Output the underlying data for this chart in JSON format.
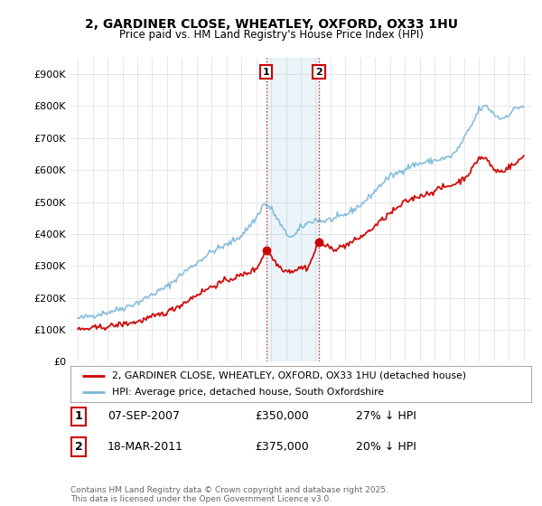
{
  "title_line1": "2, GARDINER CLOSE, WHEATLEY, OXFORD, OX33 1HU",
  "title_line2": "Price paid vs. HM Land Registry's House Price Index (HPI)",
  "background_color": "#ffffff",
  "plot_bg_color": "#ffffff",
  "grid_color": "#dddddd",
  "hpi_color": "#7ab8d9",
  "price_color": "#cc0000",
  "sale1_date_x": 2007.68,
  "sale1_price": 350000,
  "sale2_date_x": 2011.21,
  "sale2_price": 375000,
  "sale1_label": "07-SEP-2007",
  "sale2_label": "18-MAR-2011",
  "sale1_pct": "27% ↓ HPI",
  "sale2_pct": "20% ↓ HPI",
  "legend_label1": "2, GARDINER CLOSE, WHEATLEY, OXFORD, OX33 1HU (detached house)",
  "legend_label2": "HPI: Average price, detached house, South Oxfordshire",
  "footnote": "Contains HM Land Registry data © Crown copyright and database right 2025.\nThis data is licensed under the Open Government Licence v3.0.",
  "xmin": 1994.5,
  "xmax": 2025.5,
  "ymin": 0,
  "ymax": 950000,
  "hpi_base": [
    [
      1995.0,
      135000
    ],
    [
      1996.0,
      145000
    ],
    [
      1997.0,
      155000
    ],
    [
      1998.0,
      168000
    ],
    [
      1999.0,
      185000
    ],
    [
      2000.0,
      210000
    ],
    [
      2001.0,
      235000
    ],
    [
      2002.0,
      275000
    ],
    [
      2003.0,
      310000
    ],
    [
      2004.0,
      345000
    ],
    [
      2005.0,
      365000
    ],
    [
      2006.0,
      395000
    ],
    [
      2007.0,
      450000
    ],
    [
      2007.5,
      495000
    ],
    [
      2008.0,
      480000
    ],
    [
      2008.5,
      440000
    ],
    [
      2009.0,
      400000
    ],
    [
      2009.5,
      390000
    ],
    [
      2010.0,
      420000
    ],
    [
      2010.5,
      435000
    ],
    [
      2011.0,
      445000
    ],
    [
      2011.5,
      440000
    ],
    [
      2012.0,
      445000
    ],
    [
      2012.5,
      450000
    ],
    [
      2013.0,
      460000
    ],
    [
      2013.5,
      475000
    ],
    [
      2014.0,
      490000
    ],
    [
      2014.5,
      510000
    ],
    [
      2015.0,
      535000
    ],
    [
      2015.5,
      560000
    ],
    [
      2016.0,
      580000
    ],
    [
      2016.5,
      590000
    ],
    [
      2017.0,
      605000
    ],
    [
      2017.5,
      615000
    ],
    [
      2018.0,
      620000
    ],
    [
      2018.5,
      625000
    ],
    [
      2019.0,
      630000
    ],
    [
      2019.5,
      635000
    ],
    [
      2020.0,
      640000
    ],
    [
      2020.5,
      660000
    ],
    [
      2021.0,
      700000
    ],
    [
      2021.5,
      740000
    ],
    [
      2022.0,
      790000
    ],
    [
      2022.5,
      800000
    ],
    [
      2023.0,
      775000
    ],
    [
      2023.5,
      760000
    ],
    [
      2024.0,
      775000
    ],
    [
      2024.5,
      795000
    ],
    [
      2025.0,
      800000
    ]
  ],
  "price_base": [
    [
      1995.0,
      100000
    ],
    [
      1996.0,
      105000
    ],
    [
      1997.0,
      110000
    ],
    [
      1998.0,
      118000
    ],
    [
      1999.0,
      125000
    ],
    [
      2000.0,
      140000
    ],
    [
      2001.0,
      155000
    ],
    [
      2002.0,
      180000
    ],
    [
      2003.0,
      210000
    ],
    [
      2004.0,
      235000
    ],
    [
      2005.0,
      255000
    ],
    [
      2006.0,
      270000
    ],
    [
      2007.0,
      290000
    ],
    [
      2007.68,
      350000
    ],
    [
      2008.0,
      330000
    ],
    [
      2008.5,
      300000
    ],
    [
      2009.0,
      285000
    ],
    [
      2009.5,
      285000
    ],
    [
      2010.0,
      295000
    ],
    [
      2010.5,
      295000
    ],
    [
      2011.21,
      375000
    ],
    [
      2011.5,
      365000
    ],
    [
      2012.0,
      355000
    ],
    [
      2012.5,
      355000
    ],
    [
      2013.0,
      365000
    ],
    [
      2013.5,
      375000
    ],
    [
      2014.0,
      390000
    ],
    [
      2014.5,
      405000
    ],
    [
      2015.0,
      425000
    ],
    [
      2015.5,
      445000
    ],
    [
      2016.0,
      465000
    ],
    [
      2016.5,
      480000
    ],
    [
      2017.0,
      500000
    ],
    [
      2017.5,
      510000
    ],
    [
      2018.0,
      520000
    ],
    [
      2018.5,
      525000
    ],
    [
      2019.0,
      535000
    ],
    [
      2019.5,
      545000
    ],
    [
      2020.0,
      550000
    ],
    [
      2020.5,
      560000
    ],
    [
      2021.0,
      575000
    ],
    [
      2021.5,
      600000
    ],
    [
      2022.0,
      640000
    ],
    [
      2022.5,
      635000
    ],
    [
      2023.0,
      600000
    ],
    [
      2023.5,
      595000
    ],
    [
      2024.0,
      610000
    ],
    [
      2024.5,
      620000
    ],
    [
      2025.0,
      645000
    ]
  ]
}
